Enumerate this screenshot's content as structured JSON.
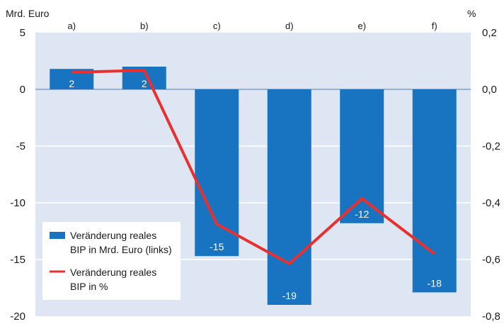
{
  "chart_data": {
    "type": "bar+line",
    "categories": [
      "a)",
      "b)",
      "c)",
      "d)",
      "e)",
      "f)"
    ],
    "left_axis": {
      "unit_label": "Mrd. Euro",
      "ylim": [
        -20,
        5
      ],
      "ticks": [
        5,
        0,
        -5,
        -10,
        -15,
        -20
      ],
      "tick_labels": [
        "5",
        "0",
        "-5",
        "-10",
        "-15",
        "-20"
      ]
    },
    "right_axis": {
      "unit_label": "%",
      "ylim": [
        -0.8,
        0.2
      ],
      "ticks": [
        0.2,
        0.0,
        -0.2,
        -0.4,
        -0.6,
        -0.8
      ],
      "tick_labels": [
        "0,2",
        "0,0",
        "-0,2",
        "-0,4",
        "-0,6",
        "-0,8"
      ]
    },
    "series": [
      {
        "name": "Veränderung reales BIP in Mrd. Euro (links)",
        "type": "bar",
        "axis": "left",
        "color": "#1874c0",
        "values": [
          1.8,
          2.0,
          -14.7,
          -19.0,
          -11.8,
          -17.9
        ],
        "data_labels": [
          "2",
          "2",
          "-15",
          "-19",
          "-12",
          "-18"
        ]
      },
      {
        "name": "Veränderung reales BIP in %",
        "type": "line",
        "axis": "right",
        "color": "#e8312f",
        "values": [
          0.06,
          0.067,
          -0.475,
          -0.615,
          -0.385,
          -0.58
        ]
      }
    ],
    "legend": {
      "placement": "bottom-left",
      "entries": [
        {
          "line1": "Veränderung reales",
          "line2": "BIP in Mrd. Euro (links)"
        },
        {
          "line1": "Veränderung reales",
          "line2": "BIP in %"
        }
      ]
    },
    "background_color": "#dfe6f3",
    "grid": true
  }
}
